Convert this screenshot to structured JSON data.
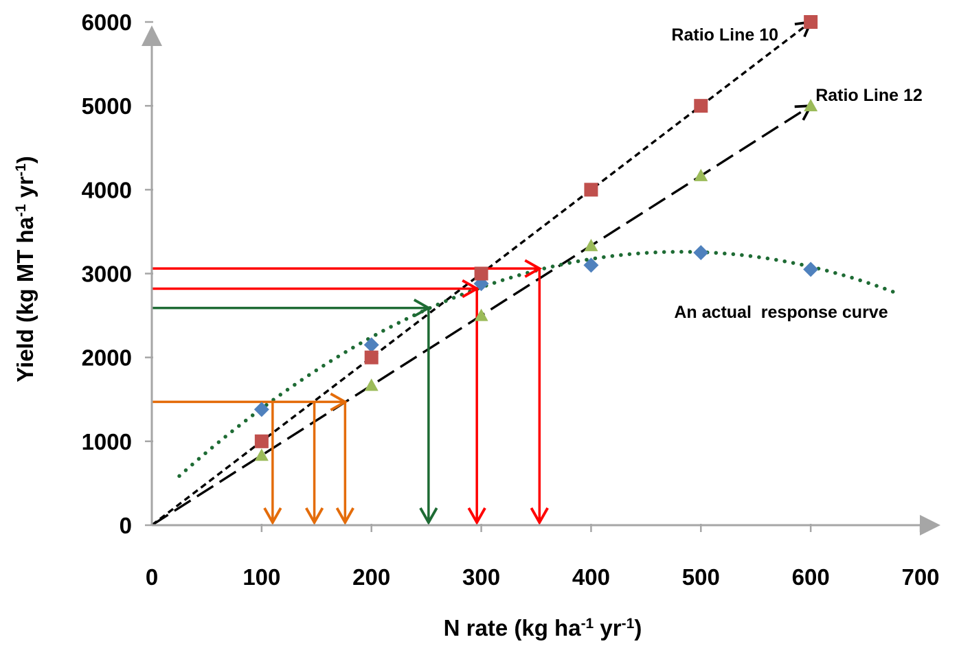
{
  "chart_data": {
    "type": "scatter",
    "title": "",
    "xlabel": {
      "main": "N rate (kg ha",
      "sup1": "-1",
      "mid": " yr",
      "sup2": "-1",
      "end": ")"
    },
    "ylabel": {
      "main": "Yield (kg MT ha",
      "sup1": "-1",
      "mid": " yr",
      "sup2": "-1",
      "end": ")"
    },
    "xlim": [
      0,
      700
    ],
    "ylim": [
      0,
      6000
    ],
    "x_ticks": [
      "0",
      "100",
      "200",
      "300",
      "400",
      "500",
      "600",
      "700"
    ],
    "y_ticks": [
      "0",
      "1000",
      "2000",
      "3000",
      "4000",
      "5000",
      "6000"
    ],
    "series": [
      {
        "marker": "diamond",
        "color": "#4f81bd",
        "x": [
          100,
          200,
          300,
          400,
          500,
          600
        ],
        "y": [
          1380,
          2150,
          2880,
          3100,
          3250,
          3050
        ]
      },
      {
        "marker": "square",
        "color": "#c0504d",
        "x": [
          100,
          200,
          300,
          400,
          500,
          600
        ],
        "y": [
          1000,
          2000,
          3000,
          4000,
          5000,
          6000
        ]
      },
      {
        "marker": "triangle",
        "color": "#9bbb59",
        "x": [
          100,
          200,
          300,
          400,
          500,
          600
        ],
        "y": [
          833,
          1667,
          2500,
          3333,
          4167,
          5000
        ]
      }
    ],
    "ratio_lines": [
      {
        "label": "Ratio Line 10",
        "slope": 10,
        "x_end": 600,
        "dash": "short",
        "label_at": [
          560,
          5800
        ]
      },
      {
        "label": "Ratio Line 12",
        "slope": 8.333,
        "x_end": 600,
        "dash": "long",
        "label_at": [
          585,
          5100
        ]
      }
    ],
    "response_curve": {
      "label": "An actual  response curve",
      "label_at": [
        440,
        2550
      ],
      "color": "#1e6b34",
      "coefficients": [
        285.53,
        12.34,
        -0.0128
      ],
      "x_range": [
        25,
        680
      ]
    },
    "arrows": [
      {
        "color": "#e46c0a",
        "y": 1470,
        "x_start": 0,
        "x_end": 176,
        "drops": [
          110,
          148,
          176
        ]
      },
      {
        "color": "#1e6b34",
        "y": 2590,
        "x_start": 0,
        "x_end": 252,
        "drops": [
          252
        ]
      },
      {
        "color": "#ff0000",
        "y": 2820,
        "x_start": 0,
        "x_end": 296,
        "drops": [
          296
        ]
      },
      {
        "color": "#ff0000",
        "y": 3060,
        "x_start": 0,
        "x_end": 353,
        "drops": [
          353
        ]
      }
    ],
    "axis_color": "#a6a6a6"
  }
}
